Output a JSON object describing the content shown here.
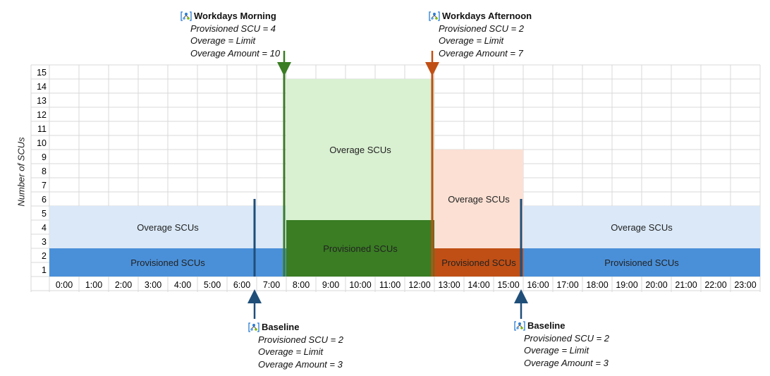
{
  "chart_data": {
    "type": "area",
    "ylabel": "Number of SCUs",
    "ylim": [
      0,
      15
    ],
    "y_ticks": [
      "1",
      "2",
      "3",
      "4",
      "5",
      "6",
      "7",
      "8",
      "9",
      "10",
      "11",
      "12",
      "13",
      "14",
      "15"
    ],
    "x_ticks": [
      "0:00",
      "1:00",
      "2:00",
      "3:00",
      "4:00",
      "5:00",
      "6:00",
      "7:00",
      "8:00",
      "9:00",
      "10:00",
      "11:00",
      "12:00",
      "13:00",
      "14:00",
      "15:00",
      "16:00",
      "17:00",
      "18:00",
      "19:00",
      "20:00",
      "21:00",
      "22:00",
      "23:00"
    ],
    "grid": true,
    "regions": [
      {
        "start_hour": 0,
        "end_hour": 8,
        "provisioned": 2,
        "overage_top": 5,
        "provisioned_color": "#4a90d9",
        "overage_color": "#dae8f7",
        "provisioned_label": "Provisioned SCUs",
        "overage_label": "Overage SCUs"
      },
      {
        "start_hour": 8,
        "end_hour": 13,
        "provisioned": 4,
        "overage_top": 14,
        "provisioned_color": "#3a7d23",
        "overage_color": "#d9f0d1",
        "provisioned_label": "Provisioned SCUs",
        "overage_label": "Overage SCUs"
      },
      {
        "start_hour": 13,
        "end_hour": 16,
        "provisioned": 2,
        "overage_top": 9,
        "provisioned_color": "#c04f15",
        "overage_color": "#fbe0d3",
        "provisioned_label": "Provisioned SCUs",
        "overage_label": "Overage SCUs"
      },
      {
        "start_hour": 16,
        "end_hour": 24,
        "provisioned": 2,
        "overage_top": 5,
        "provisioned_color": "#4a90d9",
        "overage_color": "#dae8f7",
        "provisioned_label": "Provisioned SCUs",
        "overage_label": "Overage SCUs"
      }
    ],
    "markers": [
      {
        "hour": 7,
        "color": "#1f4e79",
        "direction": "up"
      },
      {
        "hour": 8,
        "color": "#3a7d23",
        "direction": "down"
      },
      {
        "hour": 13,
        "color": "#c04f15",
        "direction": "down"
      },
      {
        "hour": 16,
        "color": "#1f4e79",
        "direction": "up"
      }
    ]
  },
  "annotations": {
    "workdays_morning": {
      "title": "Workdays Morning",
      "lines": [
        "Provisioned SCU = 4",
        "Overage = Limit",
        "Overage Amount = 10"
      ]
    },
    "workdays_afternoon": {
      "title": "Workdays Afternoon",
      "lines": [
        "Provisioned SCU = 2",
        "Overage = Limit",
        "Overage Amount = 7"
      ]
    },
    "baseline_morning": {
      "title": "Baseline",
      "lines": [
        "Provisioned SCU = 2",
        "Overage = Limit",
        "Overage Amount = 3"
      ]
    },
    "baseline_evening": {
      "title": "Baseline",
      "lines": [
        "Provisioned SCU = 2",
        "Overage = Limit",
        "Overage Amount = 3"
      ]
    }
  },
  "icon": "schedule-icon"
}
